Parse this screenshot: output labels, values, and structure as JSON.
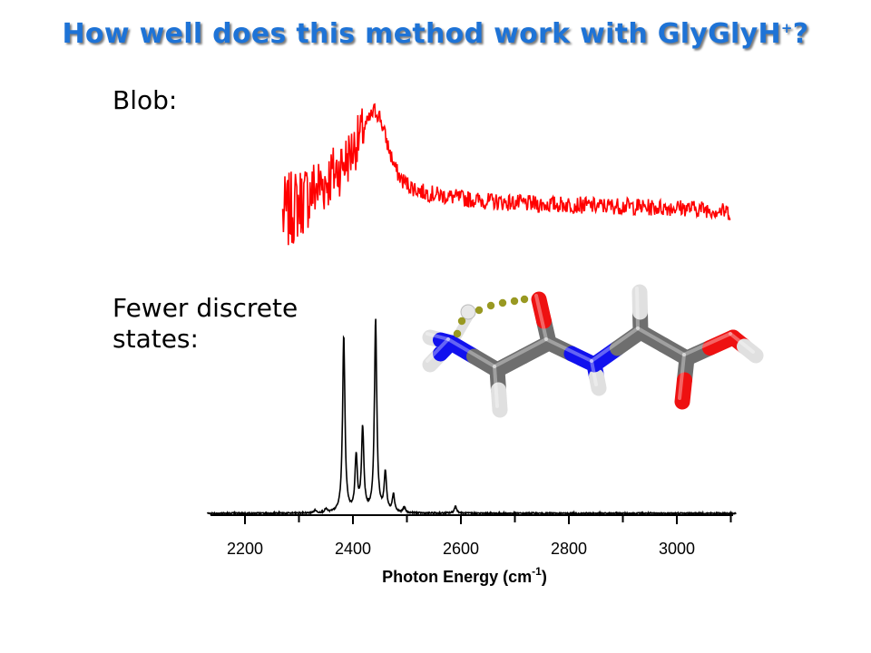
{
  "title": {
    "text": "How well does this method work with GlyGlyH",
    "sup": "+",
    "suffix": "?",
    "color": "#1e73d6"
  },
  "labels": {
    "blob": "Blob:",
    "fewer": "Fewer discrete states:"
  },
  "chart_data": {
    "type": "line",
    "xlabel": "Photon Energy (cm",
    "xlabel_sup": "-1",
    "xlabel_suffix": ")",
    "xlim": [
      2130,
      3110
    ],
    "x_ticks": [
      2200,
      2400,
      2600,
      2800,
      3000
    ],
    "x_minor_ticks": [
      2300,
      2500,
      2700,
      2900,
      3100
    ],
    "grid": false,
    "legend": "none",
    "series": [
      {
        "color": "#ff0000",
        "x": [
          2270,
          2290,
          2310,
          2330,
          2350,
          2370,
          2390,
          2400,
          2410,
          2420,
          2430,
          2440,
          2450,
          2460,
          2470,
          2480,
          2490,
          2510,
          2530,
          2560,
          2600,
          2650,
          2700,
          2750,
          2800,
          2850,
          2900,
          2950,
          3000,
          3050,
          3100
        ],
        "values": [
          0.3,
          0.36,
          0.42,
          0.48,
          0.53,
          0.6,
          0.68,
          0.74,
          0.8,
          0.87,
          0.93,
          0.99,
          0.95,
          0.82,
          0.7,
          0.6,
          0.54,
          0.49,
          0.46,
          0.44,
          0.42,
          0.4,
          0.39,
          0.38,
          0.38,
          0.37,
          0.37,
          0.36,
          0.36,
          0.35,
          0.33
        ]
      },
      {
        "color": "#000000",
        "peaks": [
          {
            "x": 2383,
            "height": 1.0
          },
          {
            "x": 2406,
            "height": 0.31
          },
          {
            "x": 2418,
            "height": 0.47
          },
          {
            "x": 2442,
            "height": 1.09
          },
          {
            "x": 2460,
            "height": 0.22
          },
          {
            "x": 2475,
            "height": 0.1
          },
          {
            "x": 2495,
            "height": 0.03
          },
          {
            "x": 2350,
            "height": 0.02
          },
          {
            "x": 2330,
            "height": 0.015
          },
          {
            "x": 2590,
            "height": 0.04
          }
        ]
      }
    ]
  },
  "molecule": {
    "name": "GlyGlyH+",
    "colors": {
      "carbon": "#6e6e6e",
      "nitrogen": "#1111ee",
      "oxygen": "#ee1111",
      "hydrogen": "#e0e0e0",
      "hbond": "#999922"
    }
  }
}
